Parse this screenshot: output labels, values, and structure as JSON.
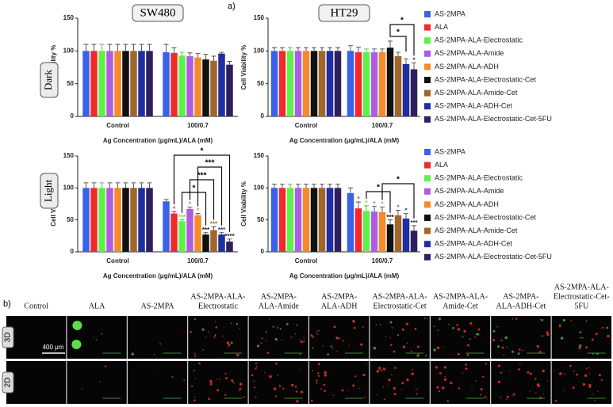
{
  "panel_a_label": "a)",
  "panel_b_label": "b)",
  "row_labels": [
    "Dark",
    "Light"
  ],
  "chart_data": [
    {
      "type": "bar",
      "title": "SW480",
      "ylabel": "Cell Viability %",
      "xlabel": "Ag Concentration (μg/mL)/ALA (mM)",
      "categories": [
        "Control",
        "100/0.7"
      ],
      "ylim": [
        0,
        150
      ],
      "yticks": [
        0,
        50,
        100,
        150
      ],
      "series": [
        {
          "name": "AS-2MPA",
          "color": "#3a62e8",
          "values": [
            100,
            98
          ],
          "errors": [
            10,
            12
          ]
        },
        {
          "name": "ALA",
          "color": "#f0292b",
          "values": [
            100,
            97
          ],
          "errors": [
            10,
            8
          ]
        },
        {
          "name": "AS-2MPA-ALA-Electrostatic",
          "color": "#5ef04a",
          "values": [
            100,
            93
          ],
          "errors": [
            10,
            5
          ]
        },
        {
          "name": "AS-2MPA-ALA-Amide",
          "color": "#b05ce0",
          "values": [
            100,
            92
          ],
          "errors": [
            10,
            5
          ]
        },
        {
          "name": "AS-2MPA-ALA-ADH",
          "color": "#f58a2a",
          "values": [
            100,
            90
          ],
          "errors": [
            10,
            6
          ]
        },
        {
          "name": "AS-2MPA-ALA-Electrostatic-Cet",
          "color": "#111111",
          "values": [
            100,
            87
          ],
          "errors": [
            10,
            8
          ]
        },
        {
          "name": "AS-2MPA-ALA-Amide-Cet",
          "color": "#a0662a",
          "values": [
            100,
            85
          ],
          "errors": [
            10,
            7
          ]
        },
        {
          "name": "AS-2MPA-ALA-ADH-Cet",
          "color": "#1f2fa0",
          "values": [
            100,
            96
          ],
          "errors": [
            10,
            2
          ]
        },
        {
          "name": "AS-2MPA-ALA-Electrostatic-Cet-5FU",
          "color": "#2e1f5e",
          "values": [
            100,
            79
          ],
          "errors": [
            10,
            5
          ]
        }
      ]
    },
    {
      "type": "bar",
      "title": "HT29",
      "ylabel": "Cell Viability %",
      "xlabel": "Ag Concentration (μg/mL)/ALA (mM)",
      "categories": [
        "Control",
        "100/0.7"
      ],
      "ylim": [
        0,
        150
      ],
      "yticks": [
        0,
        50,
        100,
        150
      ],
      "legend": "right",
      "bracket_labels": [
        "*",
        "*"
      ],
      "series": [
        {
          "name": "AS-2MPA",
          "color": "#3a62e8",
          "values": [
            100,
            100
          ],
          "errors": [
            5,
            8
          ]
        },
        {
          "name": "ALA",
          "color": "#f0292b",
          "values": [
            100,
            98
          ],
          "errors": [
            5,
            8
          ]
        },
        {
          "name": "AS-2MPA-ALA-Electrostatic",
          "color": "#5ef04a",
          "values": [
            100,
            98
          ],
          "errors": [
            5,
            5
          ]
        },
        {
          "name": "AS-2MPA-ALA-Amide",
          "color": "#b05ce0",
          "values": [
            100,
            98
          ],
          "errors": [
            5,
            5
          ]
        },
        {
          "name": "AS-2MPA-ALA-ADH",
          "color": "#f58a2a",
          "values": [
            100,
            98
          ],
          "errors": [
            5,
            5
          ]
        },
        {
          "name": "AS-2MPA-ALA-Electrostatic-Cet",
          "color": "#111111",
          "values": [
            100,
            105
          ],
          "errors": [
            5,
            10
          ]
        },
        {
          "name": "AS-2MPA-ALA-Amide-Cet",
          "color": "#a0662a",
          "values": [
            100,
            92
          ],
          "errors": [
            5,
            6
          ]
        },
        {
          "name": "AS-2MPA-ALA-ADH-Cet",
          "color": "#1f2fa0",
          "values": [
            100,
            80
          ],
          "errors": [
            5,
            8
          ]
        },
        {
          "name": "AS-2MPA-ALA-Electrostatic-Cet-5FU",
          "color": "#2e1f5e",
          "values": [
            100,
            72
          ],
          "errors": [
            5,
            10
          ],
          "annotations": [
            null,
            "*"
          ]
        }
      ]
    },
    {
      "type": "bar",
      "ylabel": "Cell Viability %",
      "xlabel": "Ag Concentration (μg/mL)/ALA (mM)",
      "categories": [
        "Control",
        "100/0.7"
      ],
      "ylim": [
        0,
        150
      ],
      "yticks": [
        0,
        50,
        100,
        150
      ],
      "bracket_labels": [
        "*",
        "***",
        "***",
        "*"
      ],
      "series": [
        {
          "name": "AS-2MPA",
          "color": "#3a62e8",
          "values": [
            100,
            79
          ],
          "errors": [
            8,
            3
          ]
        },
        {
          "name": "ALA",
          "color": "#f0292b",
          "values": [
            100,
            60
          ],
          "errors": [
            8,
            3
          ],
          "annotations": [
            null,
            "*"
          ]
        },
        {
          "name": "AS-2MPA-ALA-Electrostatic",
          "color": "#5ef04a",
          "values": [
            100,
            48
          ],
          "errors": [
            8,
            2
          ],
          "annotations": [
            null,
            "***"
          ]
        },
        {
          "name": "AS-2MPA-ALA-Amide",
          "color": "#b05ce0",
          "values": [
            100,
            67
          ],
          "errors": [
            8,
            3
          ],
          "annotations": [
            null,
            "*"
          ]
        },
        {
          "name": "AS-2MPA-ALA-ADH",
          "color": "#f58a2a",
          "values": [
            100,
            57
          ],
          "errors": [
            8,
            3
          ],
          "annotations": [
            null,
            "*"
          ]
        },
        {
          "name": "AS-2MPA-ALA-Electrostatic-Cet",
          "color": "#111111",
          "values": [
            100,
            27
          ],
          "errors": [
            8,
            3
          ],
          "annotations": [
            null,
            "***"
          ]
        },
        {
          "name": "AS-2MPA-ALA-Amide-Cet",
          "color": "#a0662a",
          "values": [
            100,
            34
          ],
          "errors": [
            8,
            5
          ],
          "annotations": [
            null,
            "***"
          ]
        },
        {
          "name": "AS-2MPA-ALA-ADH-Cet",
          "color": "#1f2fa0",
          "values": [
            100,
            27
          ],
          "errors": [
            8,
            3
          ],
          "annotations": [
            null,
            "***"
          ]
        },
        {
          "name": "AS-2MPA-ALA-Electrostatic-Cet-5FU",
          "color": "#2e1f5e",
          "values": [
            100,
            16
          ],
          "errors": [
            8,
            4
          ],
          "annotations": [
            null,
            "****"
          ]
        }
      ]
    },
    {
      "type": "bar",
      "ylabel": "Cell Viability %",
      "xlabel": "Ag Concentration (μg/mL)/ALA (mM)",
      "categories": [
        "Control",
        "100/0.7"
      ],
      "ylim": [
        0,
        150
      ],
      "yticks": [
        0,
        50,
        100,
        150
      ],
      "legend": "right",
      "bracket_labels": [
        "*",
        "*"
      ],
      "series": [
        {
          "name": "AS-2MPA",
          "color": "#3a62e8",
          "values": [
            100,
            92
          ],
          "errors": [
            6,
            8
          ]
        },
        {
          "name": "ALA",
          "color": "#f0292b",
          "values": [
            100,
            68
          ],
          "errors": [
            6,
            10
          ],
          "annotations": [
            null,
            "*"
          ]
        },
        {
          "name": "AS-2MPA-ALA-Electrostatic",
          "color": "#5ef04a",
          "values": [
            100,
            64
          ],
          "errors": [
            6,
            8
          ],
          "annotations": [
            null,
            "*"
          ]
        },
        {
          "name": "AS-2MPA-ALA-Amide",
          "color": "#b05ce0",
          "values": [
            100,
            63
          ],
          "errors": [
            6,
            8
          ],
          "annotations": [
            null,
            "*"
          ]
        },
        {
          "name": "AS-2MPA-ALA-ADH",
          "color": "#f58a2a",
          "values": [
            100,
            62
          ],
          "errors": [
            6,
            8
          ],
          "annotations": [
            null,
            "*"
          ]
        },
        {
          "name": "AS-2MPA-ALA-Electrostatic-Cet",
          "color": "#111111",
          "values": [
            100,
            43
          ],
          "errors": [
            6,
            7
          ],
          "annotations": [
            null,
            "***"
          ]
        },
        {
          "name": "AS-2MPA-ALA-Amide-Cet",
          "color": "#a0662a",
          "values": [
            100,
            57
          ],
          "errors": [
            6,
            8
          ],
          "annotations": [
            null,
            "*"
          ]
        },
        {
          "name": "AS-2MPA-ALA-ADH-Cet",
          "color": "#1f2fa0",
          "values": [
            100,
            52
          ],
          "errors": [
            6,
            8
          ],
          "annotations": [
            null,
            "*"
          ]
        },
        {
          "name": "AS-2MPA-ALA-Electrostatic-Cet-5FU",
          "color": "#2e1f5e",
          "values": [
            100,
            33
          ],
          "errors": [
            6,
            8
          ],
          "annotations": [
            null,
            "***"
          ]
        }
      ]
    }
  ],
  "microscopy": {
    "columns": [
      [
        "Control"
      ],
      [
        "ALA"
      ],
      [
        "AS-2MPA"
      ],
      [
        "AS-2MPA-ALA-",
        "Electrostatic"
      ],
      [
        "AS-2MPA-",
        "ALA-Amide"
      ],
      [
        "AS-2MPA-",
        "ALA-ADH"
      ],
      [
        "AS-2MPA-ALA-",
        "Electrostatic-Cet"
      ],
      [
        "AS-2MPA-ALA-",
        "Amide-Cet"
      ],
      [
        "AS-2MPA-",
        "ALA-ADH-Cet"
      ],
      [
        "AS-2MPA-ALA-",
        "Electrostatic-Cet-",
        "5FU"
      ]
    ],
    "rows": [
      "3D",
      "2D"
    ],
    "scale_bar": "400 μm"
  }
}
